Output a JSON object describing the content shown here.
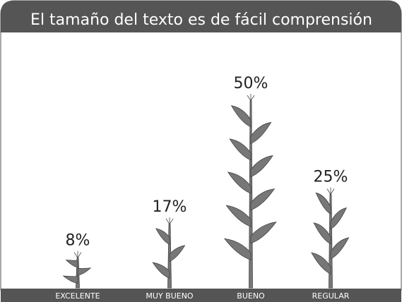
{
  "chart_data": {
    "type": "pictograph",
    "title": "El tamaño del texto es de fácil comprensión",
    "categories": [
      "EXCELENTE",
      "MUY BUENO",
      "BUENO",
      "REGULAR"
    ],
    "values": [
      8,
      17,
      50,
      25
    ],
    "value_labels": [
      "8%",
      "17%",
      "50%",
      "25%"
    ],
    "color": "#777777"
  }
}
